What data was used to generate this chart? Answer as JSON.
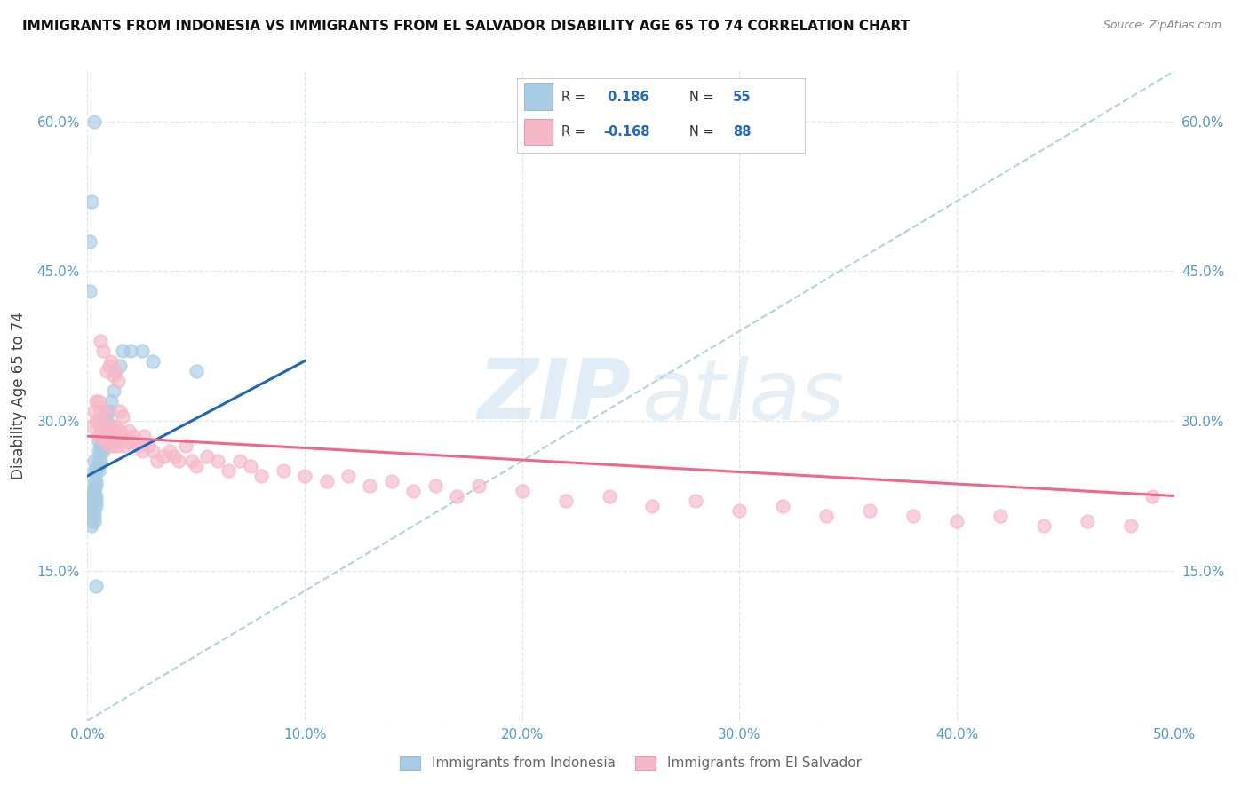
{
  "title": "IMMIGRANTS FROM INDONESIA VS IMMIGRANTS FROM EL SALVADOR DISABILITY AGE 65 TO 74 CORRELATION CHART",
  "source": "Source: ZipAtlas.com",
  "ylabel": "Disability Age 65 to 74",
  "xlim": [
    0.0,
    0.5
  ],
  "ylim": [
    0.0,
    0.65
  ],
  "xtick_vals": [
    0.0,
    0.1,
    0.2,
    0.3,
    0.4,
    0.5
  ],
  "xticklabels": [
    "0.0%",
    "10.0%",
    "20.0%",
    "30.0%",
    "40.0%",
    "50.0%"
  ],
  "ytick_vals": [
    0.0,
    0.15,
    0.3,
    0.45,
    0.6
  ],
  "yticklabels": [
    "",
    "15.0%",
    "30.0%",
    "45.0%",
    "60.0%"
  ],
  "indonesia_color": "#a8cce4",
  "el_salvador_color": "#f5b8c8",
  "indonesia_line_color": "#2266bb",
  "el_salvador_line_color": "#ee6688",
  "dashed_line_color": "#aaccdd",
  "watermark_zip_color": "#c8dff0",
  "watermark_atlas_color": "#c0d8e8",
  "background_color": "#ffffff",
  "grid_color": "#d8e8f0",
  "tick_color": "#5599cc",
  "indonesia_scatter_x": [
    0.001,
    0.001,
    0.001,
    0.002,
    0.002,
    0.002,
    0.002,
    0.002,
    0.002,
    0.002,
    0.003,
    0.003,
    0.003,
    0.003,
    0.003,
    0.003,
    0.003,
    0.003,
    0.003,
    0.004,
    0.004,
    0.004,
    0.004,
    0.004,
    0.004,
    0.005,
    0.005,
    0.005,
    0.005,
    0.005,
    0.006,
    0.006,
    0.006,
    0.007,
    0.007,
    0.007,
    0.008,
    0.008,
    0.009,
    0.009,
    0.01,
    0.01,
    0.011,
    0.012,
    0.015,
    0.016,
    0.02,
    0.025,
    0.03,
    0.05,
    0.001,
    0.001,
    0.002,
    0.003,
    0.004
  ],
  "indonesia_scatter_y": [
    0.215,
    0.22,
    0.225,
    0.195,
    0.2,
    0.205,
    0.21,
    0.22,
    0.225,
    0.23,
    0.2,
    0.205,
    0.21,
    0.22,
    0.225,
    0.23,
    0.24,
    0.25,
    0.26,
    0.215,
    0.22,
    0.225,
    0.235,
    0.24,
    0.25,
    0.25,
    0.255,
    0.26,
    0.27,
    0.28,
    0.26,
    0.27,
    0.275,
    0.27,
    0.28,
    0.295,
    0.285,
    0.295,
    0.3,
    0.31,
    0.29,
    0.31,
    0.32,
    0.33,
    0.355,
    0.37,
    0.37,
    0.37,
    0.36,
    0.35,
    0.43,
    0.48,
    0.52,
    0.6,
    0.135
  ],
  "el_salvador_scatter_x": [
    0.002,
    0.003,
    0.004,
    0.004,
    0.005,
    0.005,
    0.005,
    0.006,
    0.006,
    0.007,
    0.007,
    0.008,
    0.008,
    0.008,
    0.009,
    0.009,
    0.01,
    0.01,
    0.011,
    0.011,
    0.012,
    0.012,
    0.013,
    0.013,
    0.014,
    0.015,
    0.015,
    0.016,
    0.016,
    0.017,
    0.018,
    0.019,
    0.02,
    0.021,
    0.022,
    0.023,
    0.025,
    0.026,
    0.028,
    0.03,
    0.032,
    0.035,
    0.038,
    0.04,
    0.042,
    0.045,
    0.048,
    0.05,
    0.055,
    0.06,
    0.065,
    0.07,
    0.075,
    0.08,
    0.09,
    0.1,
    0.11,
    0.12,
    0.13,
    0.14,
    0.15,
    0.16,
    0.17,
    0.18,
    0.2,
    0.22,
    0.24,
    0.26,
    0.28,
    0.3,
    0.32,
    0.34,
    0.36,
    0.38,
    0.4,
    0.42,
    0.44,
    0.46,
    0.48,
    0.49,
    0.009,
    0.01,
    0.011,
    0.012,
    0.013,
    0.014,
    0.006,
    0.007
  ],
  "el_salvador_scatter_y": [
    0.295,
    0.31,
    0.3,
    0.32,
    0.285,
    0.3,
    0.32,
    0.29,
    0.31,
    0.285,
    0.3,
    0.28,
    0.295,
    0.31,
    0.285,
    0.295,
    0.275,
    0.29,
    0.28,
    0.295,
    0.275,
    0.29,
    0.28,
    0.295,
    0.275,
    0.29,
    0.31,
    0.285,
    0.305,
    0.275,
    0.28,
    0.29,
    0.28,
    0.285,
    0.28,
    0.275,
    0.27,
    0.285,
    0.275,
    0.27,
    0.26,
    0.265,
    0.27,
    0.265,
    0.26,
    0.275,
    0.26,
    0.255,
    0.265,
    0.26,
    0.25,
    0.26,
    0.255,
    0.245,
    0.25,
    0.245,
    0.24,
    0.245,
    0.235,
    0.24,
    0.23,
    0.235,
    0.225,
    0.235,
    0.23,
    0.22,
    0.225,
    0.215,
    0.22,
    0.21,
    0.215,
    0.205,
    0.21,
    0.205,
    0.2,
    0.205,
    0.195,
    0.2,
    0.195,
    0.225,
    0.35,
    0.355,
    0.36,
    0.345,
    0.35,
    0.34,
    0.38,
    0.37
  ],
  "indo_line_x": [
    0.0,
    0.1
  ],
  "indo_line_y": [
    0.245,
    0.36
  ],
  "sal_line_x": [
    0.0,
    0.5
  ],
  "sal_line_y": [
    0.285,
    0.225
  ]
}
